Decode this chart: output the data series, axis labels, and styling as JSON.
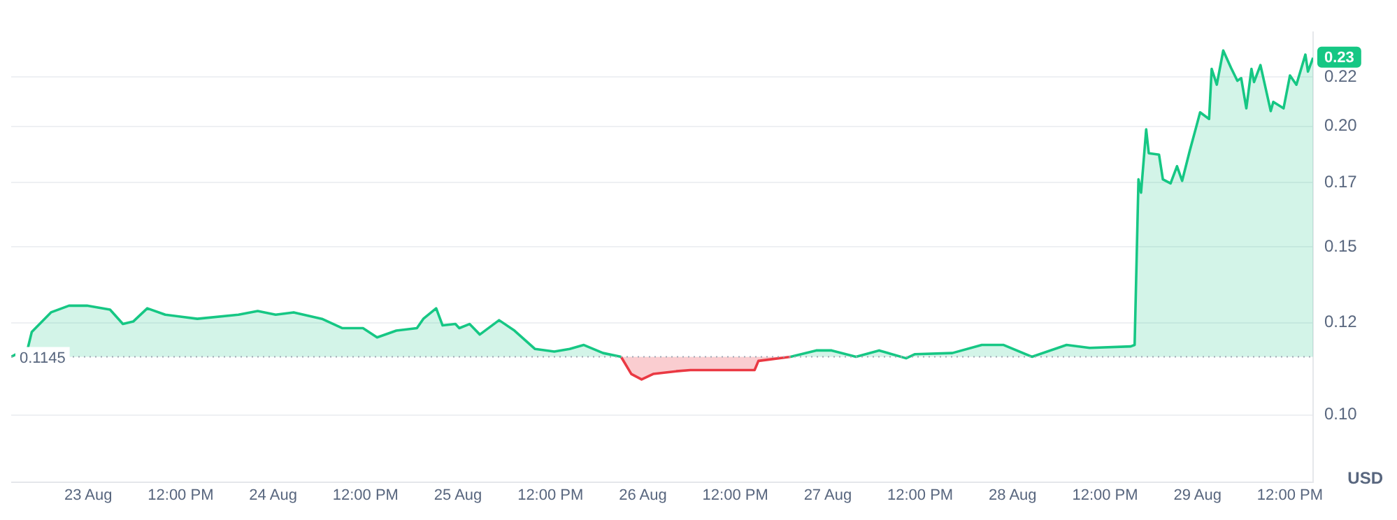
{
  "chart_data": {
    "type": "area",
    "ylabel": "USD",
    "log": true,
    "grid": "y",
    "legend": false,
    "marker": "none",
    "line_style": "solid",
    "xlim": [
      "--08-22T14:00",
      "--08-29T15:00"
    ],
    "xticks": [
      {
        "value": "--08-23",
        "label": "23 Aug"
      },
      {
        "value": "--08-23T12:00",
        "label": "12:00 PM"
      },
      {
        "value": "--08-24",
        "label": "24 Aug"
      },
      {
        "value": "--08-24T12:00",
        "label": "12:00 PM"
      },
      {
        "value": "--08-25",
        "label": "25 Aug"
      },
      {
        "value": "--08-25T12:00",
        "label": "12:00 PM"
      },
      {
        "value": "--08-26",
        "label": "26 Aug"
      },
      {
        "value": "--08-26T12:00",
        "label": "12:00 PM"
      },
      {
        "value": "--08-27",
        "label": "27 Aug"
      },
      {
        "value": "--08-27T12:00",
        "label": "12:00 PM"
      },
      {
        "value": "--08-28",
        "label": "28 Aug"
      },
      {
        "value": "--08-28T12:00",
        "label": "12:00 PM"
      },
      {
        "value": "--08-29",
        "label": "29 Aug"
      },
      {
        "value": "--08-29T12:00",
        "label": "12:00 PM"
      }
    ],
    "ylim": [
      0.0855,
      0.244
    ],
    "yticks": [
      {
        "value": 0.1,
        "label": "0.10"
      },
      {
        "value": 0.124,
        "label": "0.12"
      },
      {
        "value": 0.148,
        "label": "0.15"
      },
      {
        "value": 0.172,
        "label": "0.17"
      },
      {
        "value": 0.196,
        "label": "0.20"
      },
      {
        "value": 0.22,
        "label": "0.22"
      }
    ],
    "ref_lines": [
      {
        "axis": "y",
        "value": 0.1145,
        "label": "0.1145",
        "color": "#a0a7b4",
        "line_style": "dotted"
      }
    ],
    "x": [
      "--08-22T14:00",
      "--08-22T16:10",
      "--08-22T16:40",
      "--08-22T19:10",
      "--08-22T21:30",
      "--08-22T23:50",
      "--08-23T02:50",
      "--08-23T04:30",
      "--08-23T05:50",
      "--08-23T07:40",
      "--08-23T10:00",
      "--08-23T14:10",
      "--08-23T19:30",
      "--08-23T22:00",
      "--08-24T00:20",
      "--08-24T02:40",
      "--08-24T06:20",
      "--08-24T09:00",
      "--08-24T11:40",
      "--08-24T13:30",
      "--08-24T16:00",
      "--08-24T18:40",
      "--08-24T19:30",
      "--08-24T21:10",
      "--08-24T22:00",
      "--08-24T23:40",
      "--08-25T00:10",
      "--08-25T01:30",
      "--08-25T02:50",
      "--08-25T05:20",
      "--08-25T07:20",
      "--08-25T10:00",
      "--08-25T12:30",
      "--08-25T14:30",
      "--08-25T16:20",
      "--08-25T18:50",
      "--08-25T21:10",
      "--08-25T22:30",
      "--08-25T23:50",
      "--08-26T01:20",
      "--08-26T04:20",
      "--08-26T06:10",
      "--08-26T09:10",
      "--08-26T14:30",
      "--08-26T15:00",
      "--08-26T19:10",
      "--08-26T22:30",
      "--08-27T00:30",
      "--08-27T03:40",
      "--08-27T06:40",
      "--08-27T10:10",
      "--08-27T11:20",
      "--08-27T16:10",
      "--08-27T20:00",
      "--08-27T22:50",
      "--08-28T02:30",
      "--08-28T07:00",
      "--08-28T10:00",
      "--08-28T15:20",
      "--08-28T15:50",
      "--08-28T16:20",
      "--08-28T16:40",
      "--08-28T17:20",
      "--08-28T17:40",
      "--08-28T19:00",
      "--08-28T19:30",
      "--08-28T20:30",
      "--08-28T21:20",
      "--08-28T22:00",
      "--08-28T23:00",
      "--08-28T23:50",
      "--08-29T00:20",
      "--08-29T01:30",
      "--08-29T01:50",
      "--08-29T02:30",
      "--08-29T03:20",
      "--08-29T04:20",
      "--08-29T05:10",
      "--08-29T05:40",
      "--08-29T06:20",
      "--08-29T07:00",
      "--08-29T07:20",
      "--08-29T08:10",
      "--08-29T09:30",
      "--08-29T09:50",
      "--08-29T11:10",
      "--08-29T12:00",
      "--08-29T12:50",
      "--08-29T14:00",
      "--08-29T14:20",
      "--08-29T15:00"
    ],
    "series": [
      {
        "color": "#16c784",
        "values": [
          0.1145,
          0.1169,
          0.1213,
          0.127,
          0.129,
          0.129,
          0.1278,
          0.1236,
          0.1243,
          0.1282,
          0.1263,
          0.1251,
          0.1263,
          0.1274,
          0.1263,
          0.127,
          0.1251,
          0.1224,
          0.1224,
          0.1198,
          0.1217,
          0.1224,
          0.1251,
          0.1282,
          0.1232,
          0.1236,
          0.1224,
          0.1236,
          0.1206,
          0.1247,
          0.1217,
          0.1166,
          0.1159,
          0.1166,
          0.1177,
          0.1155,
          0.1145,
          null,
          null,
          null,
          null,
          null,
          null,
          null,
          null,
          0.1145,
          0.1162,
          0.1162,
          0.1145,
          0.1162,
          0.1141,
          0.1152,
          0.1155,
          0.1177,
          0.1177,
          0.1145,
          0.1177,
          0.1169,
          0.1173,
          0.1177,
          0.1732,
          0.1679,
          0.1946,
          0.1841,
          0.1835,
          0.1732,
          0.1716,
          0.1786,
          0.1726,
          0.1853,
          0.1958,
          0.2025,
          0.1994,
          0.2241,
          0.216,
          0.2339,
          0.2248,
          0.218,
          0.2193,
          0.2044,
          0.2241,
          0.2173,
          0.2261,
          0.2031,
          0.2075,
          0.2044,
          0.2207,
          0.216,
          0.2317,
          0.2227,
          0.23
        ],
        "value_labels": [
          null,
          null,
          null,
          null,
          null,
          null,
          null,
          null,
          null,
          null,
          null,
          null,
          null,
          null,
          null,
          null,
          null,
          null,
          null,
          null,
          null,
          null,
          null,
          null,
          null,
          null,
          null,
          null,
          null,
          null,
          null,
          null,
          null,
          null,
          null,
          null,
          null,
          null,
          null,
          null,
          null,
          null,
          null,
          null,
          null,
          null,
          null,
          null,
          null,
          null,
          null,
          null,
          null,
          null,
          null,
          null,
          null,
          null,
          null,
          null,
          null,
          null,
          null,
          null,
          null,
          null,
          null,
          null,
          null,
          null,
          null,
          null,
          null,
          null,
          null,
          null,
          null,
          null,
          null,
          null,
          null,
          null,
          null,
          null,
          null,
          null,
          null,
          null,
          null,
          null,
          "0.23"
        ]
      },
      {
        "color": "#ea3943",
        "values": [
          null,
          null,
          null,
          null,
          null,
          null,
          null,
          null,
          null,
          null,
          null,
          null,
          null,
          null,
          null,
          null,
          null,
          null,
          null,
          null,
          null,
          null,
          null,
          null,
          null,
          null,
          null,
          null,
          null,
          null,
          null,
          null,
          null,
          null,
          null,
          null,
          0.1145,
          0.11,
          0.1086,
          0.11,
          0.1107,
          0.111,
          0.111,
          0.111,
          0.1134,
          0.1145,
          null,
          null,
          null,
          null,
          null,
          null,
          null,
          null,
          null,
          null,
          null,
          null,
          null,
          null,
          null,
          null,
          null,
          null,
          null,
          null,
          null,
          null,
          null,
          null,
          null,
          null,
          null,
          null,
          null,
          null,
          null,
          null,
          null,
          null,
          null,
          null,
          null,
          null,
          null,
          null,
          null,
          null,
          null,
          null,
          null
        ]
      }
    ]
  }
}
